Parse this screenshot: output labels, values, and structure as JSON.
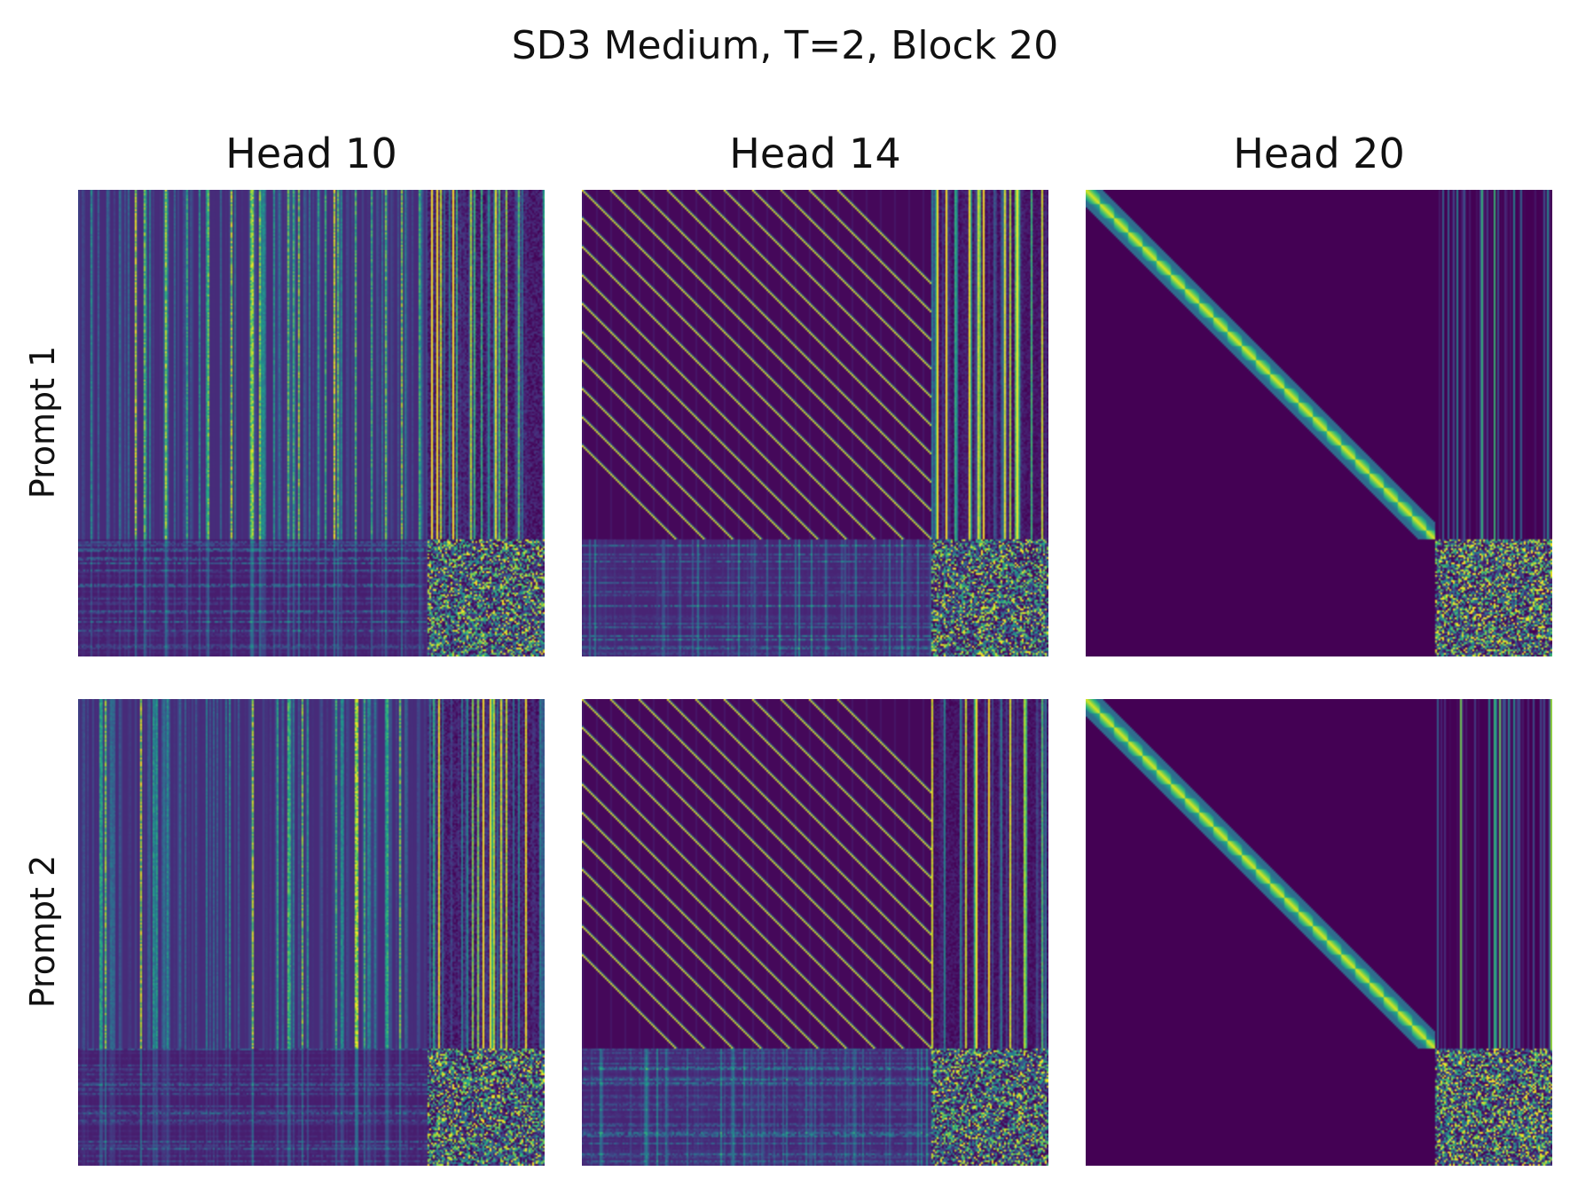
{
  "chart_data": {
    "type": "heatmap",
    "title": "SD3 Medium, T=2, Block 20",
    "colormap": "viridis",
    "columns": [
      "Head 10",
      "Head 14",
      "Head 20"
    ],
    "rows": [
      "Prompt 1",
      "Prompt 2"
    ],
    "colors": {
      "low": "#440154",
      "mid": "#21918c",
      "high": "#fde725"
    },
    "panels": [
      {
        "row": "Prompt 1",
        "column": "Head 10",
        "pattern": "vertical-stripes",
        "text_token_fraction": 0.25
      },
      {
        "row": "Prompt 1",
        "column": "Head 14",
        "pattern": "multi-diagonal",
        "text_token_fraction": 0.25
      },
      {
        "row": "Prompt 1",
        "column": "Head 20",
        "pattern": "block-diagonal",
        "text_token_fraction": 0.25
      },
      {
        "row": "Prompt 2",
        "column": "Head 10",
        "pattern": "vertical-stripes",
        "text_token_fraction": 0.25
      },
      {
        "row": "Prompt 2",
        "column": "Head 14",
        "pattern": "multi-diagonal",
        "text_token_fraction": 0.25
      },
      {
        "row": "Prompt 2",
        "column": "Head 20",
        "pattern": "block-diagonal",
        "text_token_fraction": 0.25
      }
    ]
  }
}
